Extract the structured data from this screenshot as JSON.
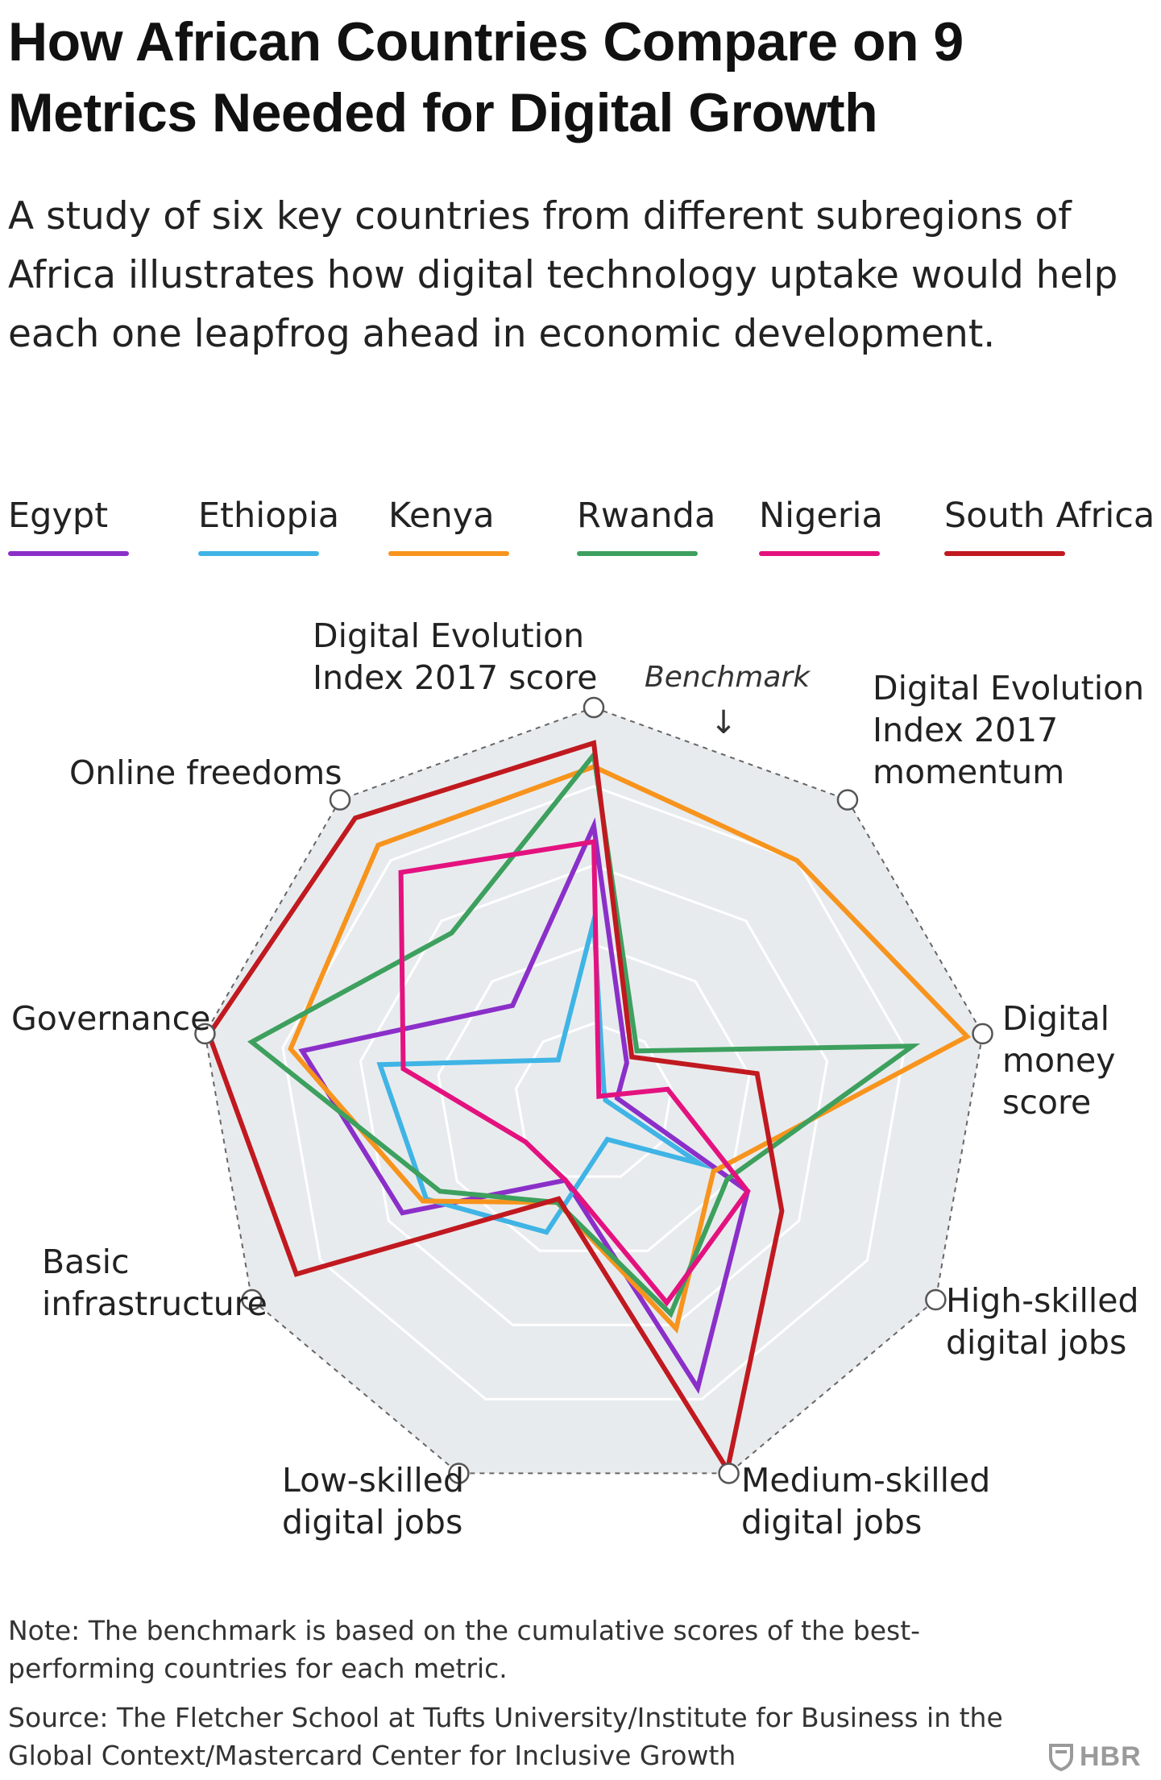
{
  "title": "How African Countries Compare on 9 Metrics Needed for Digital Growth",
  "subtitle": "A study of six key countries from different subregions of Africa illustrates how digital technology uptake would help each one leapfrog ahead in economic development.",
  "footer": {
    "note": "Note: The benchmark is based on the cumulative scores of the best-performing countries for each metric.",
    "source": "Source: The Fletcher School at Tufts University/Institute for Business in the Global Context/Mastercard Center for Inclusive Growth",
    "logo": "HBR",
    "logo_icon": "shield-icon"
  },
  "chart_data": {
    "type": "radar",
    "title": "How African Countries Compare on 9 Metrics Needed for Digital Growth",
    "range": [
      0,
      1
    ],
    "grid_levels": [
      0.2,
      0.4,
      0.6,
      0.8
    ],
    "benchmark": {
      "label": "Benchmark",
      "value": 1.0,
      "arrow": "↓"
    },
    "axes": [
      "Digital Evolution Index 2017 score",
      "Digital Evolution Index 2017 momentum",
      "Digital money score",
      "High-skilled digital jobs",
      "Medium-skilled digital jobs",
      "Low-skilled digital jobs",
      "Basic infrastructure",
      "Governance",
      "Online freedoms"
    ],
    "series": [
      {
        "name": "Egypt",
        "color": "#8b2fc9",
        "values": [
          0.7,
          0.13,
          0.06,
          0.45,
          0.77,
          0.21,
          0.56,
          0.75,
          0.32
        ]
      },
      {
        "name": "Ethiopia",
        "color": "#3fb4e5",
        "values": [
          0.46,
          0.04,
          0.03,
          0.31,
          0.1,
          0.35,
          0.49,
          0.55,
          0.14
        ]
      },
      {
        "name": "Kenya",
        "color": "#f7941d",
        "values": [
          0.85,
          0.8,
          0.96,
          0.35,
          0.61,
          0.27,
          0.5,
          0.78,
          0.85
        ]
      },
      {
        "name": "Rwanda",
        "color": "#3da05e",
        "values": [
          0.88,
          0.17,
          0.82,
          0.39,
          0.57,
          0.27,
          0.45,
          0.88,
          0.56
        ]
      },
      {
        "name": "Nigeria",
        "color": "#e3127f",
        "values": [
          0.66,
          0.02,
          0.19,
          0.45,
          0.54,
          0.21,
          0.2,
          0.49,
          0.76
        ]
      },
      {
        "name": "South Africa",
        "color": "#c0191f",
        "values": [
          0.91,
          0.15,
          0.42,
          0.55,
          0.99,
          0.26,
          0.87,
          0.99,
          0.94
        ]
      }
    ]
  }
}
